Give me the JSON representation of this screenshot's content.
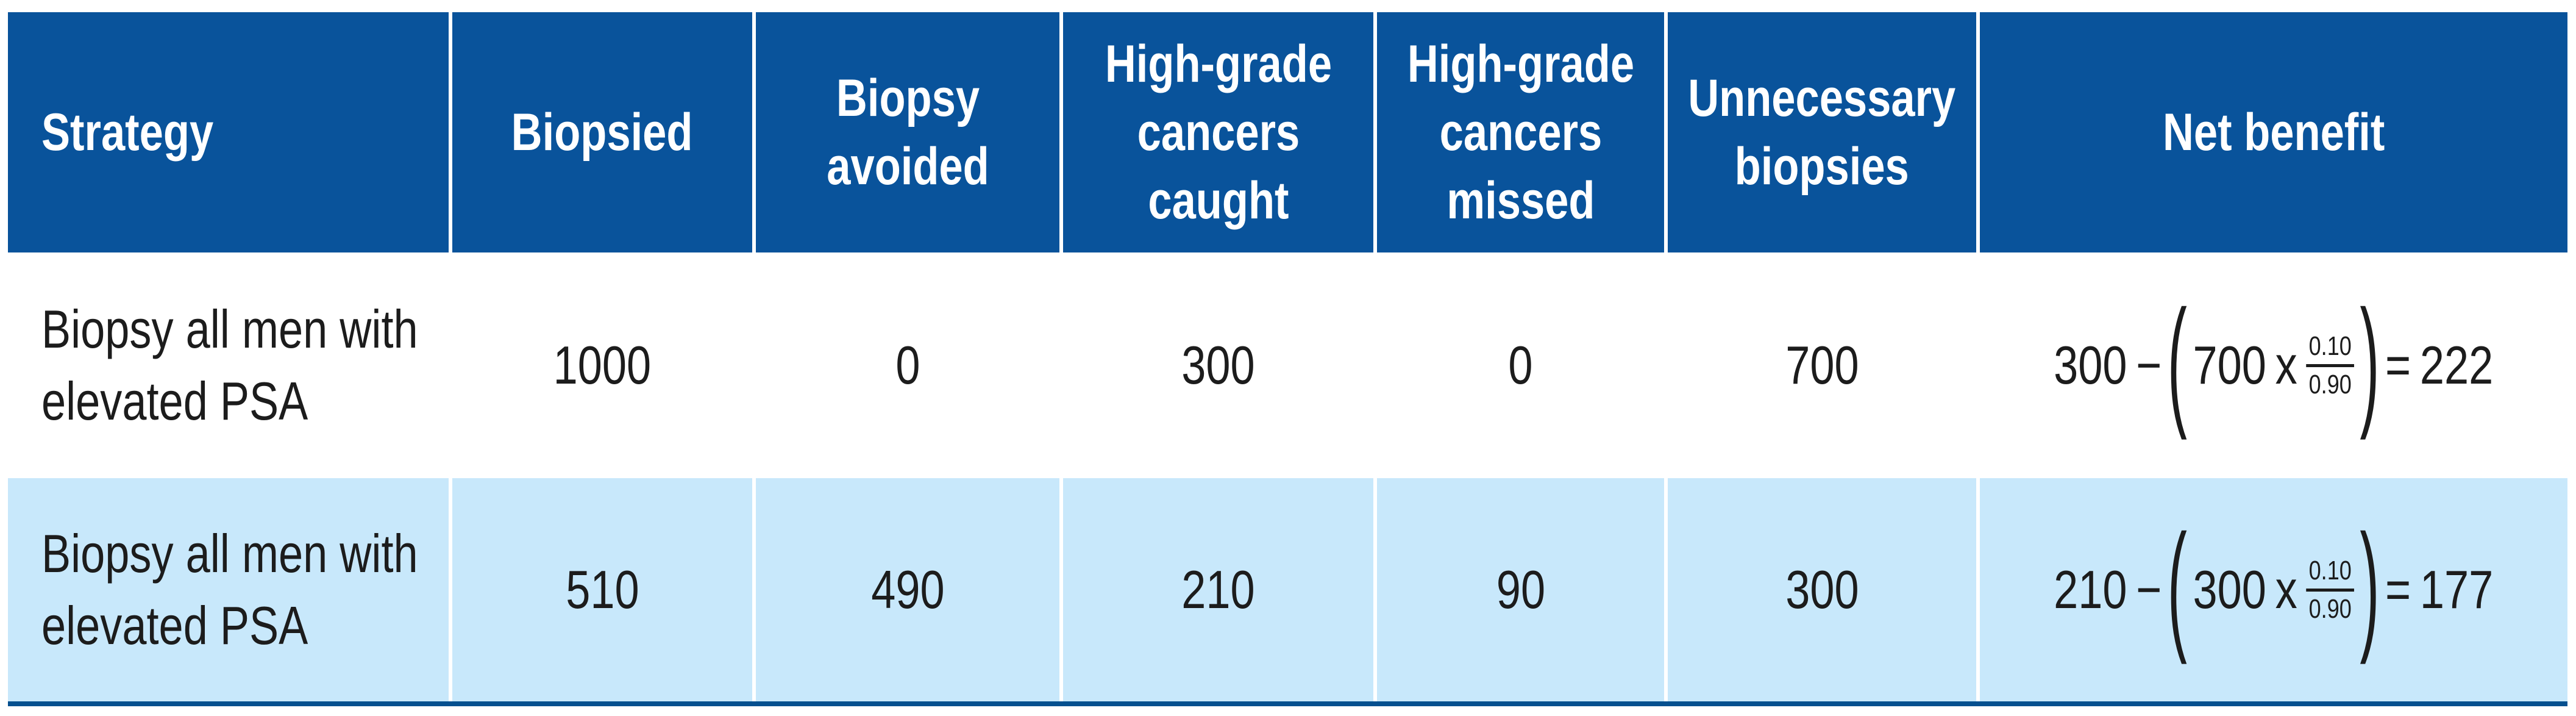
{
  "theme": {
    "header_bg": "#09539b",
    "header_text": "#ffffff",
    "row_alt_bg": "#c8e8fb",
    "bottom_border": "#05508f",
    "body_text": "#1c1c1c",
    "separator": "#ffffff"
  },
  "table": {
    "columns": [
      {
        "id": "strategy",
        "label": "Strategy",
        "lines": [
          "Strategy"
        ]
      },
      {
        "id": "biopsied",
        "label": "Biopsied",
        "lines": [
          "Biopsied"
        ]
      },
      {
        "id": "biopsy_avoided",
        "label": "Biopsy avoided",
        "lines": [
          "Biopsy",
          "avoided"
        ]
      },
      {
        "id": "hg_caught",
        "label": "High-grade cancers caught",
        "lines": [
          "High-grade",
          "cancers",
          "caught"
        ]
      },
      {
        "id": "hg_missed",
        "label": "High-grade cancers missed",
        "lines": [
          "High-grade",
          "cancers",
          "missed"
        ]
      },
      {
        "id": "unnecessary",
        "label": "Unnecessary biopsies",
        "lines": [
          "Unnecessary",
          "biopsies"
        ]
      },
      {
        "id": "net_benefit",
        "label": "Net benefit",
        "lines": [
          "Net benefit"
        ]
      }
    ],
    "rows": [
      {
        "strategy": "Biopsy all men with elevated PSA",
        "strategy_lines": [
          "Biopsy all men with",
          "elevated PSA"
        ],
        "biopsied": "1000",
        "biopsy_avoided": "0",
        "hg_caught": "300",
        "hg_missed": "0",
        "unnecessary": "700",
        "net_benefit": {
          "minuend": "300",
          "minus": "−",
          "open_paren": "(",
          "factor": "700",
          "times": "x",
          "numerator": "0.10",
          "denominator": "0.90",
          "close_paren": ")",
          "equals": "=",
          "result": "222"
        }
      },
      {
        "strategy": "Biopsy all men with elevated PSA",
        "strategy_lines": [
          "Biopsy all men with",
          "elevated PSA"
        ],
        "biopsied": "510",
        "biopsy_avoided": "490",
        "hg_caught": "210",
        "hg_missed": "90",
        "unnecessary": "300",
        "net_benefit": {
          "minuend": "210",
          "minus": "−",
          "open_paren": "(",
          "factor": "300",
          "times": "x",
          "numerator": "0.10",
          "denominator": "0.90",
          "close_paren": ")",
          "equals": "=",
          "result": "177"
        }
      }
    ]
  }
}
